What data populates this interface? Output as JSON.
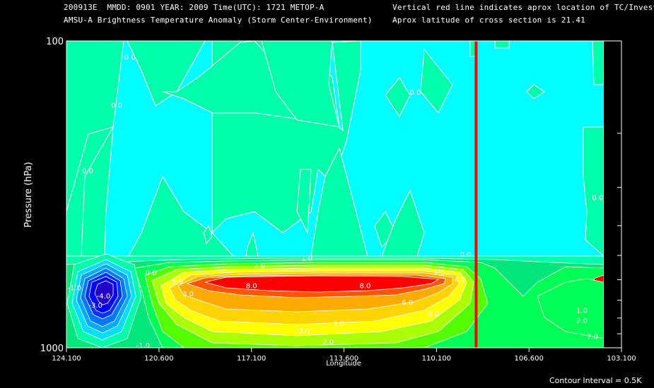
{
  "header": {
    "line1": "200913E  MMDD: 0901 YEAR: 2009 Time(UTC): 1721 METOP-A",
    "line2": "AMSU-A Brightness Temperature Anomaly (Storm Center-Environment)",
    "right1": "Vertical red line indicates aprox location of TC/Invest",
    "right2": "Aprox latitude of cross section is 21.41"
  },
  "footer": {
    "contour_interval": "Contour Interval = 0.5K"
  },
  "chart_data": {
    "type": "heatmap",
    "xlabel": "Longitude",
    "ylabel": "Pressure (hPa)",
    "x_ticks": [
      "124.100",
      "120.600",
      "117.100",
      "113.600",
      "110.100",
      "106.600",
      "103.100"
    ],
    "x_tick_values": [
      124.1,
      120.6,
      117.1,
      113.6,
      110.1,
      106.6,
      103.1
    ],
    "y_ticks": [
      "100",
      "1000"
    ],
    "y_tick_values": [
      100,
      1000
    ],
    "y_scale": "log",
    "xlim": [
      124.1,
      103.1
    ],
    "ylim": [
      1000,
      100
    ],
    "tc_longitude": 108.6,
    "contour_labels": [
      {
        "text": "0.0",
        "x": 121.7,
        "p": 115
      },
      {
        "text": "0.0",
        "x": 122.2,
        "p": 165
      },
      {
        "text": "0.0",
        "x": 123.3,
        "p": 270
      },
      {
        "text": "0.0",
        "x": 110.9,
        "p": 150
      },
      {
        "text": "0.0",
        "x": 104.0,
        "p": 330
      },
      {
        "text": "0.0",
        "x": 109.0,
        "p": 505
      },
      {
        "text": "0.0",
        "x": 120.9,
        "p": 580
      },
      {
        "text": "-1.0",
        "x": 123.8,
        "p": 650
      },
      {
        "text": "-3.0",
        "x": 123.0,
        "p": 740
      },
      {
        "text": "-4.0",
        "x": 122.7,
        "p": 690
      },
      {
        "text": "1.0",
        "x": 115.0,
        "p": 520
      },
      {
        "text": "1.0",
        "x": 110.0,
        "p": 580
      },
      {
        "text": "1.0",
        "x": 104.6,
        "p": 770
      },
      {
        "text": "2.0",
        "x": 116.8,
        "p": 550
      },
      {
        "text": "2.0",
        "x": 115.1,
        "p": 900
      },
      {
        "text": "2.0",
        "x": 104.6,
        "p": 830
      },
      {
        "text": "3.0",
        "x": 113.8,
        "p": 850
      },
      {
        "text": "3.0",
        "x": 119.5,
        "p": 680
      },
      {
        "text": "4.0",
        "x": 109.2,
        "p": 610
      },
      {
        "text": "5.0",
        "x": 119.9,
        "p": 620
      },
      {
        "text": "6.0",
        "x": 111.2,
        "p": 725
      },
      {
        "text": "6.0",
        "x": 110.2,
        "p": 790
      },
      {
        "text": "7.0",
        "x": 104.2,
        "p": 935
      },
      {
        "text": "8.0",
        "x": 117.1,
        "p": 640
      },
      {
        "text": "8.0",
        "x": 112.8,
        "p": 640
      },
      {
        "text": "-1.0",
        "x": 121.2,
        "p": 1000
      },
      {
        "text": "2.0",
        "x": 114.2,
        "p": 975
      }
    ],
    "colors": {
      "background": "#00ffff",
      "green_light": "#00ffaa",
      "green_mid": "#00e67a",
      "green": "#00ff55",
      "yellow_green": "#aaff00",
      "yellow": "#ffff00",
      "orange": "#ffaa00",
      "orange_red": "#ff5500",
      "red": "#ff0000",
      "blue": "#0000ff",
      "tc_line": "#ff0000"
    }
  }
}
